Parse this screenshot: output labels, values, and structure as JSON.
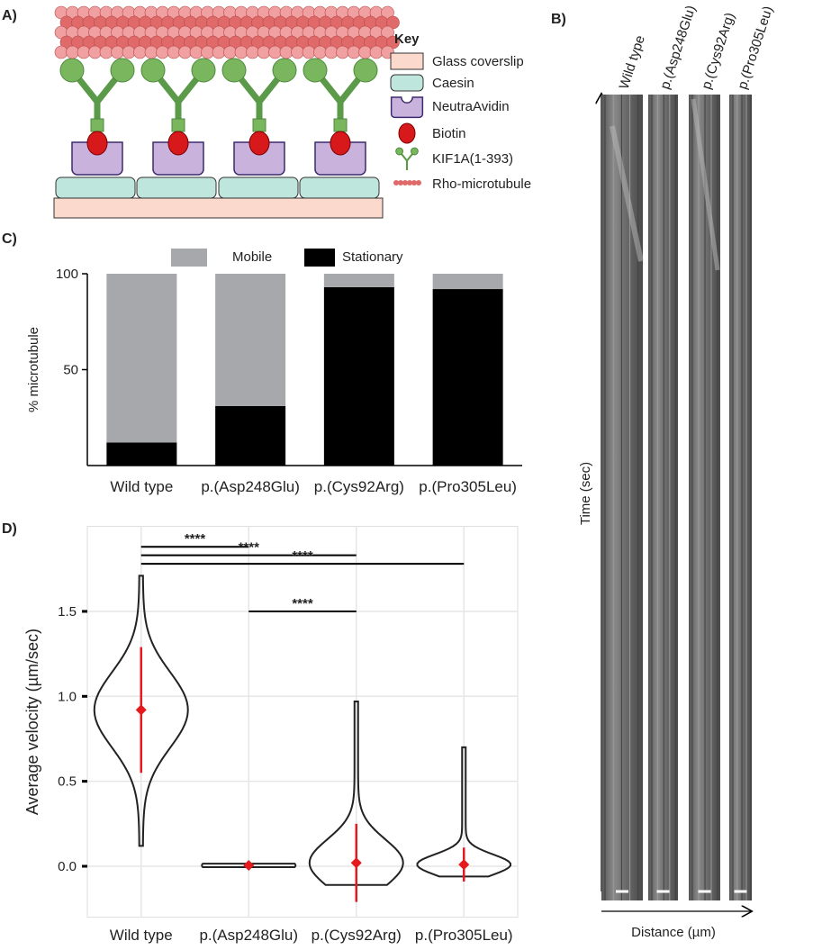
{
  "panel_labels": [
    "A)",
    "B)",
    "C)",
    "D)"
  ],
  "key": {
    "title": "Key",
    "items": [
      "Glass coverslip",
      "Caesin",
      "NeutraAvidin",
      "Biotin",
      "KIF1A(1-393)",
      "Rho-microtubule"
    ]
  },
  "kymograph": {
    "columns": [
      "Wild type",
      "p.(Asp248Glu)",
      "p.(Cys92Arg)",
      "p.(Pro305Leu)"
    ],
    "ylabel": "Time (sec)",
    "xlabel": "Distance (µm)"
  },
  "chart_data": [
    {
      "type": "stacked_bar",
      "ylabel": "% microtubule",
      "categories": [
        "Wild type",
        "p.(Asp248Glu)",
        "p.(Cys92Arg)",
        "p.(Pro305Leu)"
      ],
      "series": [
        {
          "name": "Mobile",
          "color": "#a7a8ab",
          "values": [
            88,
            69,
            7,
            8
          ]
        },
        {
          "name": "Stationary",
          "color": "#000000",
          "values": [
            12,
            31,
            93,
            92
          ]
        }
      ],
      "ylim": [
        0,
        100
      ],
      "yticks": [
        50,
        100
      ],
      "legend": "top"
    },
    {
      "type": "violin",
      "ylabel": "Average velocity (µm/sec)",
      "categories": [
        "Wild type",
        "p.(Asp248Glu)",
        "p.(Cys92Arg)",
        "p.(Pro305Leu)"
      ],
      "values": [
        0.92,
        0.005,
        0.02,
        0.01
      ],
      "errors": [
        0.37,
        0.01,
        0.23,
        0.1
      ],
      "mins": [
        0.12,
        -0.005,
        -0.11,
        -0.06
      ],
      "maxs": [
        1.71,
        0.015,
        0.97,
        0.7
      ],
      "ylim": [
        -0.3,
        2.0
      ],
      "yticks": [
        {
          "value": 0,
          "label": "0.0"
        },
        {
          "value": 0.5,
          "label": "0.5"
        },
        {
          "value": 1,
          "label": "1.0"
        },
        {
          "value": 1.5,
          "label": "1.5"
        }
      ],
      "grid": true,
      "annotations": [
        {
          "groups": [
            "Wild type",
            "p.(Asp248Glu)"
          ],
          "y": 1.88,
          "label": "****"
        },
        {
          "groups": [
            "Wild type",
            "p.(Cys92Arg)"
          ],
          "y": 1.83,
          "label": "****"
        },
        {
          "groups": [
            "Wild type",
            "p.(Pro305Leu)"
          ],
          "y": 1.78,
          "label": "****"
        },
        {
          "groups": [
            "p.(Asp248Glu)",
            "p.(Cys92Arg)"
          ],
          "y": 1.5,
          "label": "****"
        }
      ]
    }
  ]
}
